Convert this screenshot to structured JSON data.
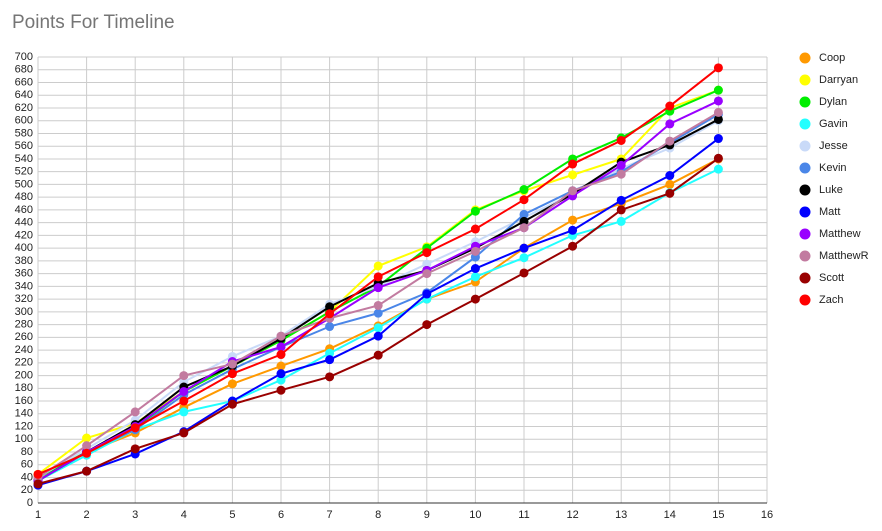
{
  "chart_data": {
    "type": "line",
    "title": "Points For Timeline",
    "x": [
      1,
      2,
      3,
      4,
      5,
      6,
      7,
      8,
      9,
      10,
      11,
      12,
      13,
      14,
      15
    ],
    "xlim": [
      1,
      16
    ],
    "xticks": [
      1,
      2,
      3,
      4,
      5,
      6,
      7,
      8,
      9,
      10,
      11,
      12,
      13,
      14,
      15,
      16
    ],
    "ylim": [
      0,
      700
    ],
    "yticks": [
      0,
      20,
      40,
      60,
      80,
      100,
      120,
      140,
      160,
      180,
      200,
      220,
      240,
      260,
      280,
      300,
      320,
      340,
      360,
      380,
      400,
      420,
      440,
      460,
      480,
      500,
      520,
      540,
      560,
      580,
      600,
      620,
      640,
      660,
      680,
      700
    ],
    "grid": true,
    "legend": "right",
    "series": [
      {
        "name": "Coop",
        "color": "#ff9900",
        "values": [
          40,
          80,
          110,
          150,
          187,
          215,
          242,
          278,
          320,
          347,
          400,
          444,
          470,
          500,
          540
        ]
      },
      {
        "name": "Darryan",
        "color": "#ffff00",
        "values": [
          45,
          102,
          125,
          175,
          215,
          255,
          300,
          372,
          402,
          460,
          490,
          515,
          540,
          620,
          648
        ]
      },
      {
        "name": "Dylan",
        "color": "#00ee00",
        "values": [
          40,
          80,
          118,
          175,
          215,
          255,
          300,
          340,
          400,
          458,
          492,
          540,
          573,
          615,
          648
        ]
      },
      {
        "name": "Gavin",
        "color": "#22ffff",
        "values": [
          35,
          75,
          115,
          143,
          160,
          193,
          235,
          275,
          320,
          355,
          385,
          420,
          442,
          487,
          524
        ]
      },
      {
        "name": "Jesse",
        "color": "#c9daf8",
        "values": [
          40,
          85,
          130,
          190,
          230,
          262,
          312,
          340,
          375,
          410,
          448,
          485,
          525,
          557,
          600
        ]
      },
      {
        "name": "Kevin",
        "color": "#4a86e8",
        "values": [
          35,
          80,
          115,
          170,
          210,
          245,
          277,
          298,
          330,
          386,
          453,
          490,
          520,
          565,
          610
        ]
      },
      {
        "name": "Luke",
        "color": "#000000",
        "values": [
          35,
          80,
          123,
          182,
          215,
          258,
          308,
          345,
          365,
          400,
          442,
          485,
          535,
          562,
          602
        ]
      },
      {
        "name": "Matt",
        "color": "#0000ff",
        "values": [
          28,
          50,
          77,
          112,
          160,
          203,
          225,
          262,
          328,
          368,
          400,
          428,
          475,
          514,
          572
        ]
      },
      {
        "name": "Matthew",
        "color": "#9900ff",
        "values": [
          35,
          80,
          120,
          175,
          222,
          245,
          290,
          338,
          365,
          403,
          432,
          482,
          530,
          595,
          631
        ]
      },
      {
        "name": "MatthewR",
        "color": "#c27ba0",
        "values": [
          40,
          90,
          143,
          200,
          218,
          262,
          290,
          310,
          360,
          395,
          432,
          490,
          516,
          568,
          613
        ]
      },
      {
        "name": "Scott",
        "color": "#990000",
        "values": [
          30,
          50,
          85,
          110,
          155,
          177,
          198,
          232,
          280,
          320,
          361,
          403,
          460,
          486,
          541
        ]
      },
      {
        "name": "Zach",
        "color": "#ff0000",
        "values": [
          45,
          78,
          118,
          160,
          203,
          233,
          297,
          355,
          393,
          430,
          476,
          532,
          569,
          623,
          683
        ]
      }
    ]
  }
}
